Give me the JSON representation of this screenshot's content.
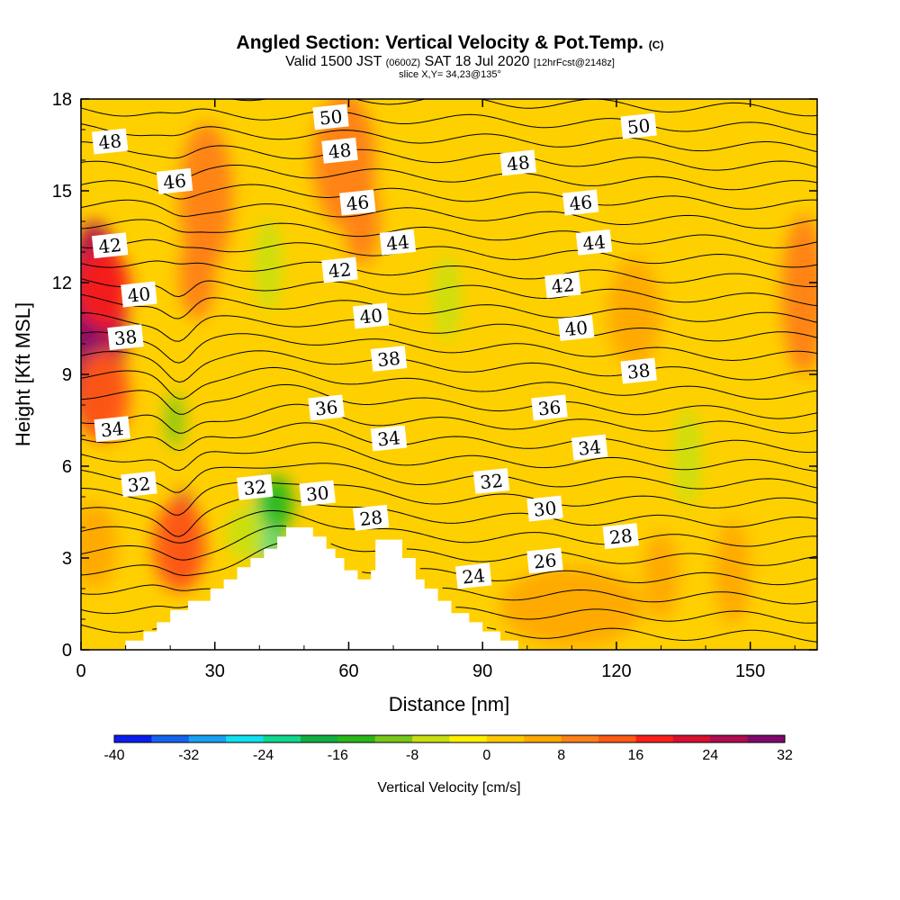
{
  "header": {
    "title": "Angled Section: Vertical Velocity & Pot.Temp.",
    "title_mark": "(C)",
    "subtitle_a": "Valid 1500 JST",
    "subtitle_z": "(0600Z)",
    "subtitle_b": "SAT 18 Jul 2020",
    "subtitle_fcst": "[12hrFcst@2148z]",
    "slice": "slice X,Y= 34,23@135°"
  },
  "chart_data": {
    "type": "heatmap",
    "xlabel": "Distance [nm]",
    "ylabel": "Height [Kft MSL]",
    "xlim": [
      0,
      165
    ],
    "ylim": [
      0,
      18
    ],
    "x_ticks": [
      0,
      30,
      60,
      90,
      120,
      150
    ],
    "y_ticks": [
      0,
      3,
      6,
      9,
      12,
      15,
      18
    ],
    "terrain": [
      [
        0,
        0
      ],
      [
        10,
        0
      ],
      [
        10,
        0.3
      ],
      [
        14,
        0.3
      ],
      [
        14,
        0.6
      ],
      [
        17,
        0.6
      ],
      [
        17,
        0.9
      ],
      [
        20,
        0.9
      ],
      [
        20,
        1.3
      ],
      [
        24,
        1.3
      ],
      [
        24,
        1.6
      ],
      [
        29,
        1.6
      ],
      [
        29,
        2
      ],
      [
        32,
        2
      ],
      [
        32,
        2.3
      ],
      [
        35,
        2.3
      ],
      [
        35,
        2.7
      ],
      [
        38,
        2.7
      ],
      [
        38,
        3
      ],
      [
        41,
        3
      ],
      [
        41,
        3.3
      ],
      [
        44,
        3.3
      ],
      [
        44,
        3.7
      ],
      [
        46,
        3.7
      ],
      [
        46,
        4
      ],
      [
        52,
        4
      ],
      [
        52,
        3.7
      ],
      [
        55,
        3.7
      ],
      [
        55,
        3.3
      ],
      [
        57,
        3.3
      ],
      [
        57,
        3
      ],
      [
        59,
        3
      ],
      [
        59,
        2.6
      ],
      [
        62,
        2.6
      ],
      [
        62,
        2.3
      ],
      [
        65,
        2.3
      ],
      [
        65,
        2.6
      ],
      [
        66,
        2.6
      ],
      [
        66,
        3.6
      ],
      [
        72,
        3.6
      ],
      [
        72,
        3
      ],
      [
        75,
        3
      ],
      [
        75,
        2.3
      ],
      [
        77,
        2.3
      ],
      [
        77,
        2
      ],
      [
        80,
        2
      ],
      [
        80,
        1.6
      ],
      [
        83,
        1.6
      ],
      [
        83,
        1.2
      ],
      [
        87,
        1.2
      ],
      [
        87,
        0.9
      ],
      [
        90,
        0.9
      ],
      [
        90,
        0.6
      ],
      [
        94,
        0.6
      ],
      [
        94,
        0.3
      ],
      [
        98,
        0.3
      ],
      [
        98,
        0
      ],
      [
        165,
        0
      ]
    ],
    "colorbar": {
      "title": "Vertical Velocity [cm/s]",
      "levels": [
        -40,
        -36,
        -32,
        -28,
        -24,
        -20,
        -16,
        -12,
        -8,
        -4,
        0,
        4,
        8,
        12,
        16,
        20,
        24,
        28,
        32
      ],
      "tick_labels": [
        -40,
        -32,
        -24,
        -16,
        -8,
        0,
        8,
        16,
        24,
        32
      ],
      "colors": [
        "#0a1ef0",
        "#1464f0",
        "#18a0f4",
        "#10e0f0",
        "#10d890",
        "#10b040",
        "#28b818",
        "#78c818",
        "#c8e010",
        "#fff000",
        "#ffc800",
        "#ffa800",
        "#ff8018",
        "#ff5a14",
        "#f82018",
        "#d81030",
        "#b00c50",
        "#80086c",
        "#500890"
      ]
    },
    "velocity_blobs": [
      {
        "x": 3,
        "y": 10.5,
        "rx": 7,
        "ry": 3.5,
        "value": 26
      },
      {
        "x": 2,
        "y": 10.8,
        "rx": 3,
        "ry": 1.5,
        "value": 30
      },
      {
        "x": 5,
        "y": 11.8,
        "rx": 6,
        "ry": 1.3,
        "value": 18
      },
      {
        "x": 5,
        "y": 8.3,
        "rx": 6,
        "ry": 1.5,
        "value": 14
      },
      {
        "x": 23,
        "y": 3.6,
        "rx": 2.6,
        "ry": 1.6,
        "value": 24
      },
      {
        "x": 22,
        "y": 3.4,
        "rx": 6,
        "ry": 1.5,
        "value": 14
      },
      {
        "x": 28,
        "y": 14.8,
        "rx": 6,
        "ry": 2.4,
        "value": 10
      },
      {
        "x": 26,
        "y": 12.2,
        "rx": 4,
        "ry": 1.4,
        "value": 8
      },
      {
        "x": 59,
        "y": 16,
        "rx": 7,
        "ry": 2.2,
        "value": 10
      },
      {
        "x": 63,
        "y": 14,
        "rx": 4,
        "ry": 1.4,
        "value": 8
      },
      {
        "x": 42,
        "y": 12.6,
        "rx": 3,
        "ry": 1.5,
        "value": -6
      },
      {
        "x": 82,
        "y": 11.5,
        "rx": 3,
        "ry": 1.4,
        "value": -6
      },
      {
        "x": 136,
        "y": 6.3,
        "rx": 3,
        "ry": 1.6,
        "value": -6
      },
      {
        "x": 21,
        "y": 7.5,
        "rx": 2,
        "ry": 0.9,
        "value": -10
      },
      {
        "x": 124,
        "y": 11,
        "rx": 6,
        "ry": 1.8,
        "value": 6
      },
      {
        "x": 162,
        "y": 11.6,
        "rx": 5,
        "ry": 2.6,
        "value": 8
      },
      {
        "x": 146,
        "y": 2.5,
        "rx": 4,
        "ry": 1.7,
        "value": 6
      },
      {
        "x": 130,
        "y": 2.4,
        "rx": 4,
        "ry": 1.4,
        "value": 4
      },
      {
        "x": 110,
        "y": 1.4,
        "rx": 16,
        "ry": 1.3,
        "value": 4
      },
      {
        "x": 3,
        "y": 3.4,
        "rx": 5,
        "ry": 1.4,
        "value": 6
      },
      {
        "x": 42,
        "y": 4.1,
        "rx": 3.2,
        "ry": 1.2,
        "value": -24
      },
      {
        "x": 44,
        "y": 4.8,
        "rx": 3.5,
        "ry": 0.9,
        "value": -14
      },
      {
        "x": 37,
        "y": 3.8,
        "rx": 4.5,
        "ry": 0.9,
        "value": -6
      }
    ],
    "isentropes": [
      22,
      23,
      24,
      25,
      26,
      27,
      28,
      29,
      30,
      31,
      32,
      33,
      34,
      35,
      36,
      37,
      38,
      39,
      40,
      41,
      42,
      43,
      44,
      45,
      46,
      47,
      48,
      49,
      50
    ],
    "contour_labels": [
      {
        "text": "50",
        "x": 56,
        "y": 17.4
      },
      {
        "text": "50",
        "x": 125,
        "y": 17.1
      },
      {
        "text": "48",
        "x": 6.5,
        "y": 16.6
      },
      {
        "text": "48",
        "x": 58,
        "y": 16.3
      },
      {
        "text": "48",
        "x": 98,
        "y": 15.9
      },
      {
        "text": "46",
        "x": 21,
        "y": 15.3
      },
      {
        "text": "46",
        "x": 62,
        "y": 14.6
      },
      {
        "text": "46",
        "x": 112,
        "y": 14.6
      },
      {
        "text": "44",
        "x": 71,
        "y": 13.3
      },
      {
        "text": "44",
        "x": 115,
        "y": 13.3
      },
      {
        "text": "42",
        "x": 6.5,
        "y": 13.2
      },
      {
        "text": "42",
        "x": 58,
        "y": 12.4
      },
      {
        "text": "42",
        "x": 108,
        "y": 11.9
      },
      {
        "text": "40",
        "x": 13,
        "y": 11.6
      },
      {
        "text": "40",
        "x": 65,
        "y": 10.9
      },
      {
        "text": "40",
        "x": 111,
        "y": 10.5
      },
      {
        "text": "38",
        "x": 10,
        "y": 10.2
      },
      {
        "text": "38",
        "x": 69,
        "y": 9.5
      },
      {
        "text": "38",
        "x": 125,
        "y": 9.1
      },
      {
        "text": "36",
        "x": 55,
        "y": 7.9
      },
      {
        "text": "36",
        "x": 105,
        "y": 7.9
      },
      {
        "text": "34",
        "x": 7,
        "y": 7.2
      },
      {
        "text": "34",
        "x": 69,
        "y": 6.9
      },
      {
        "text": "34",
        "x": 114,
        "y": 6.6
      },
      {
        "text": "32",
        "x": 13,
        "y": 5.4
      },
      {
        "text": "32",
        "x": 39,
        "y": 5.3
      },
      {
        "text": "32",
        "x": 92,
        "y": 5.5
      },
      {
        "text": "30",
        "x": 53,
        "y": 5.1
      },
      {
        "text": "30",
        "x": 104,
        "y": 4.6
      },
      {
        "text": "28",
        "x": 65,
        "y": 4.3
      },
      {
        "text": "28",
        "x": 121,
        "y": 3.7
      },
      {
        "text": "26",
        "x": 104,
        "y": 2.9
      },
      {
        "text": "24",
        "x": 88,
        "y": 2.4
      }
    ]
  }
}
